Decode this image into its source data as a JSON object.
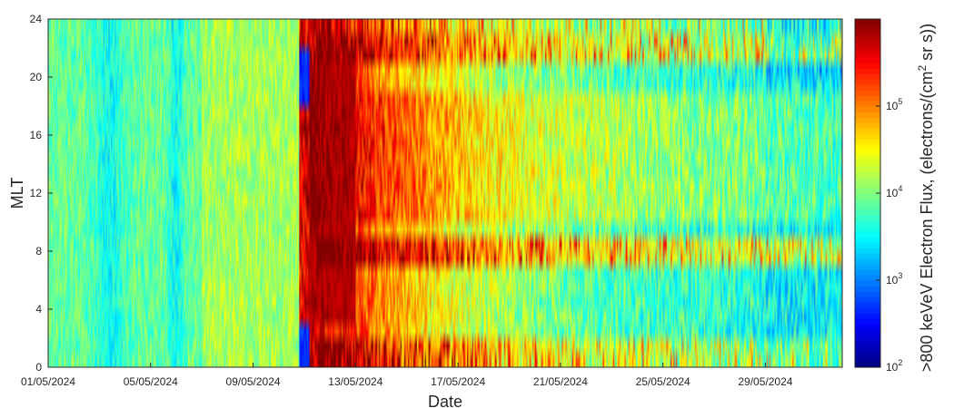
{
  "chart_data": {
    "type": "heatmap",
    "title": "",
    "xlabel": "Date",
    "ylabel": "MLT",
    "colorbar_label": ">800 keVeV Electron Flux, (electrons/(cm² sr s))",
    "colorbar_label_parts": {
      "prefix": ">800 keVeV Electron Flux, (electrons/(cm",
      "sup": "2",
      "suffix": " sr s))"
    },
    "x_start": "01/05/2024",
    "x_end": "01/06/2024",
    "x_tick_labels": [
      "01/05/2024",
      "05/05/2024",
      "09/05/2024",
      "13/05/2024",
      "17/05/2024",
      "21/05/2024",
      "25/05/2024",
      "29/05/2024"
    ],
    "y_ticks": [
      0,
      4,
      8,
      12,
      16,
      20,
      24
    ],
    "ylim": [
      0,
      24
    ],
    "colorbar": {
      "scale": "log",
      "range": [
        100,
        1000000
      ],
      "ticks": [
        {
          "base": "10",
          "exp": "2",
          "value": 100
        },
        {
          "base": "10",
          "exp": "3",
          "value": 1000
        },
        {
          "base": "10",
          "exp": "4",
          "value": 10000
        },
        {
          "base": "10",
          "exp": "5",
          "value": 100000
        }
      ],
      "colormap": "jet"
    },
    "mlt_bins": 24,
    "event": {
      "storm_onset": "11/05/2024",
      "peak_flux_log10": 6.0,
      "quiet_log10": 3.6,
      "pre_storm_log10": 3.9
    },
    "grid": false
  }
}
